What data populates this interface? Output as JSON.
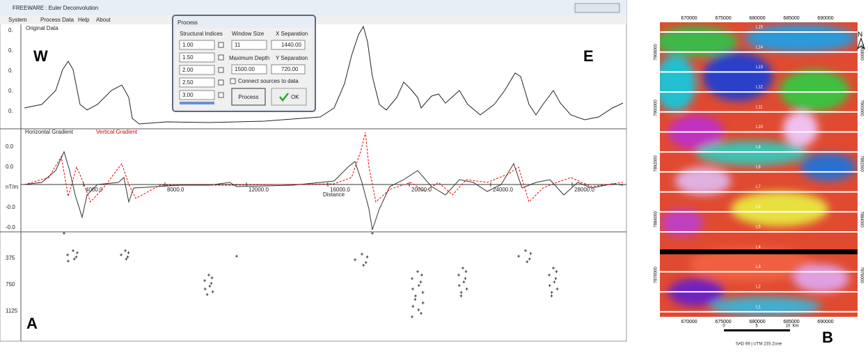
{
  "window": {
    "title": "FREEWARE : Euler Deconvolution",
    "menu": [
      "System",
      "Process Data",
      "Help",
      "About"
    ]
  },
  "profile": {
    "title": "Original Data",
    "yticks": [
      "0.",
      "0.",
      "0.",
      "0.",
      "0."
    ],
    "west": "W",
    "east": "E"
  },
  "gradient": {
    "horizontal": "Horizontal Gradient",
    "vertical": "Vertical Gradient",
    "yticks": [
      "0.0",
      "0.0",
      "nT/m",
      "-0.0",
      "-0.0"
    ],
    "xticks": [
      "4000.0",
      "8000.0",
      "12000.0",
      "16000.0",
      "20000.0",
      "24000.0",
      "28000.0"
    ],
    "xlabel": "Distance"
  },
  "depth": {
    "yticks": [
      "375",
      "750",
      "1125"
    ],
    "panel": "A"
  },
  "dialog": {
    "title": "Process",
    "indices_label": "Structural Indices",
    "indices": [
      "1.00",
      "1.50",
      "2.00",
      "2.50",
      "3.00"
    ],
    "window_label": "Window Size",
    "window": "11",
    "xsep_label": "X Separation",
    "xsep": "1440.00",
    "maxdepth_label": "Maximum Depth",
    "maxdepth": "1500.00",
    "ysep_label": "Y Separation",
    "ysep": "720.00",
    "connect": "Connect sources to data",
    "process": "Process",
    "ok": "OK"
  },
  "map": {
    "xticks": [
      "670000",
      "675000",
      "680000",
      "685000",
      "690000"
    ],
    "yticks": [
      "7908000",
      "7900000",
      "7892000",
      "7884000",
      "7876000"
    ],
    "lines": [
      "L15",
      "L14",
      "L13",
      "L12",
      "L11",
      "L10",
      "L9",
      "L8",
      "L7",
      "L6",
      "L5",
      "L4",
      "L3",
      "L2",
      "L1"
    ],
    "north": "N",
    "scale": [
      "0",
      "5",
      "10",
      "Km"
    ],
    "datum": "SAD 69 | UTM 23S Zone",
    "panel": "B"
  }
}
